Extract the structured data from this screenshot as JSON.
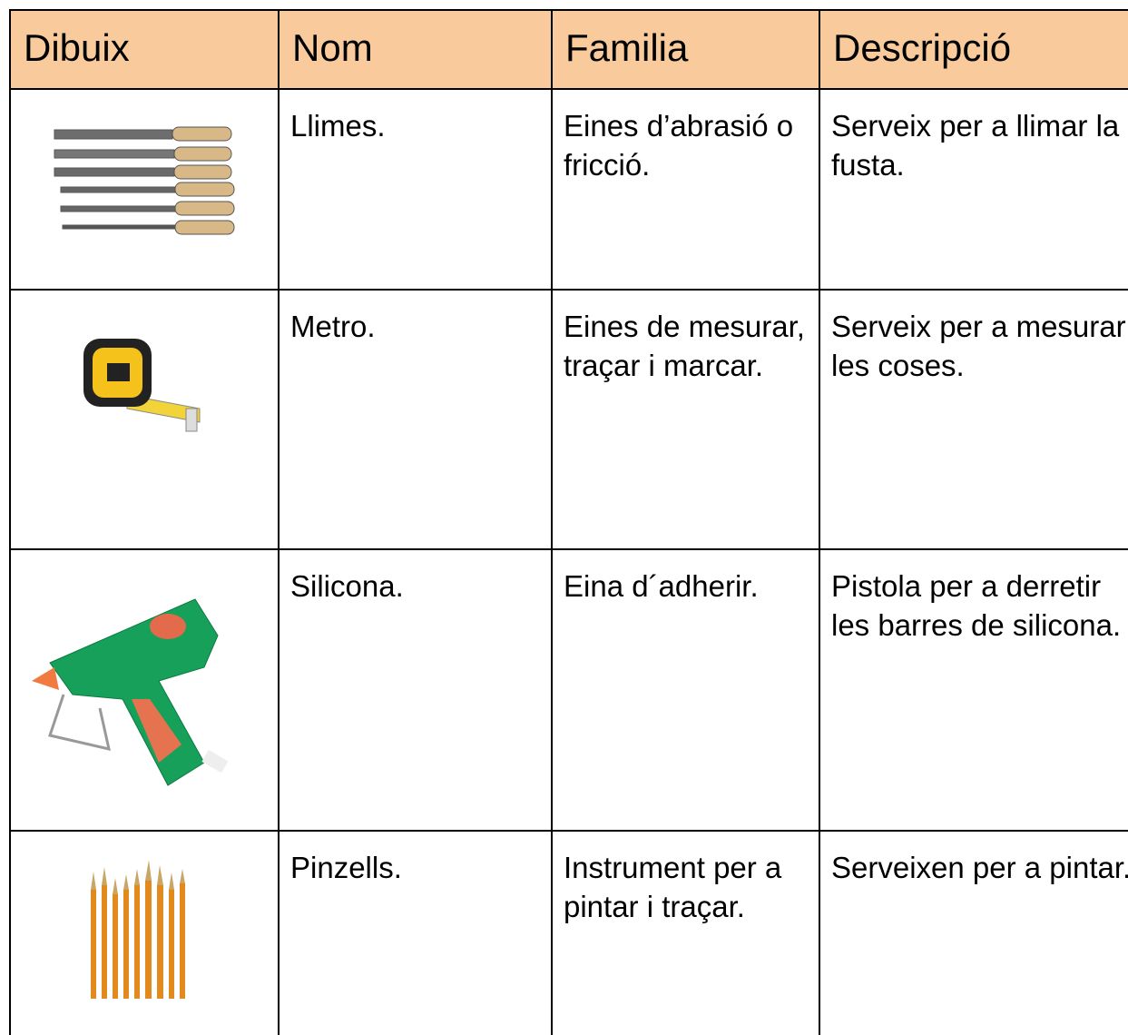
{
  "table": {
    "header": [
      "Dibuix",
      "Nom",
      "Familia",
      "Descripció"
    ],
    "rows": [
      [
        "Llimes.",
        "Eines d’abrasió o fricció.",
        "Serveix per a llimar la fusta."
      ],
      [
        "Metro.",
        "Eines de mesurar, traçar i marcar.",
        "Serveix per a mesurar les coses."
      ],
      [
        "Silicona.",
        "Eina d´adherir.",
        "Pistola per a derretir les barres de silicona."
      ],
      [
        "Pinzells.",
        "Instrument per a pintar i traçar.",
        "Serveixen per a pintar."
      ]
    ]
  }
}
